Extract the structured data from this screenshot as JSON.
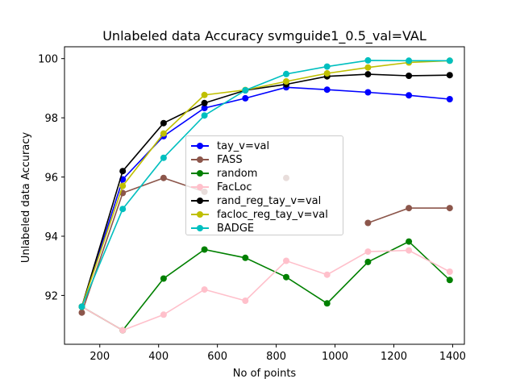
{
  "chart_data": {
    "type": "line",
    "title": "Unlabeled data Accuracy svmguide1_0.5_val=VAL",
    "xlabel": "No of points",
    "ylabel": "Unlabeled data Accuracy",
    "xlim": [
      80,
      1440
    ],
    "ylim": [
      90.35,
      100.4
    ],
    "x_ticks": [
      200,
      400,
      600,
      800,
      1000,
      1200,
      1400
    ],
    "y_ticks": [
      92,
      94,
      96,
      98,
      100
    ],
    "grid": false,
    "legend_position": "center",
    "x": [
      139,
      278,
      417,
      556,
      695,
      834,
      973,
      1112,
      1251,
      1390
    ],
    "series": [
      {
        "name": "tay_v=val",
        "color": "#0000ff",
        "values": [
          91.62,
          95.92,
          97.38,
          98.33,
          98.66,
          99.03,
          98.95,
          98.86,
          98.76,
          98.63
        ]
      },
      {
        "name": "FASS",
        "color": "#8c564b",
        "values": [
          91.42,
          95.46,
          95.97,
          95.5,
          null,
          95.97,
          null,
          94.45,
          94.95,
          94.95
        ]
      },
      {
        "name": "random",
        "color": "#008000",
        "values": [
          91.62,
          90.82,
          92.57,
          93.55,
          93.27,
          92.62,
          91.73,
          93.13,
          93.82,
          92.52
        ]
      },
      {
        "name": "FacLoc",
        "color": "#ffc0cb",
        "values": [
          91.62,
          90.82,
          91.35,
          92.2,
          91.82,
          93.17,
          92.7,
          93.48,
          93.52,
          92.8
        ]
      },
      {
        "name": "rand_reg_tay_v=val",
        "color": "#000000",
        "values": [
          91.62,
          96.2,
          97.82,
          98.5,
          98.93,
          99.13,
          99.4,
          99.47,
          99.42,
          99.44
        ]
      },
      {
        "name": "facloc_reg_tay_v=val",
        "color": "#bfbf00",
        "values": [
          91.62,
          95.7,
          97.47,
          98.77,
          98.94,
          99.23,
          99.5,
          99.7,
          99.87,
          99.93
        ]
      },
      {
        "name": "BADGE",
        "color": "#00bfbf",
        "values": [
          91.62,
          94.92,
          96.65,
          98.08,
          98.93,
          99.48,
          99.73,
          99.94,
          99.93,
          99.93
        ]
      }
    ]
  }
}
